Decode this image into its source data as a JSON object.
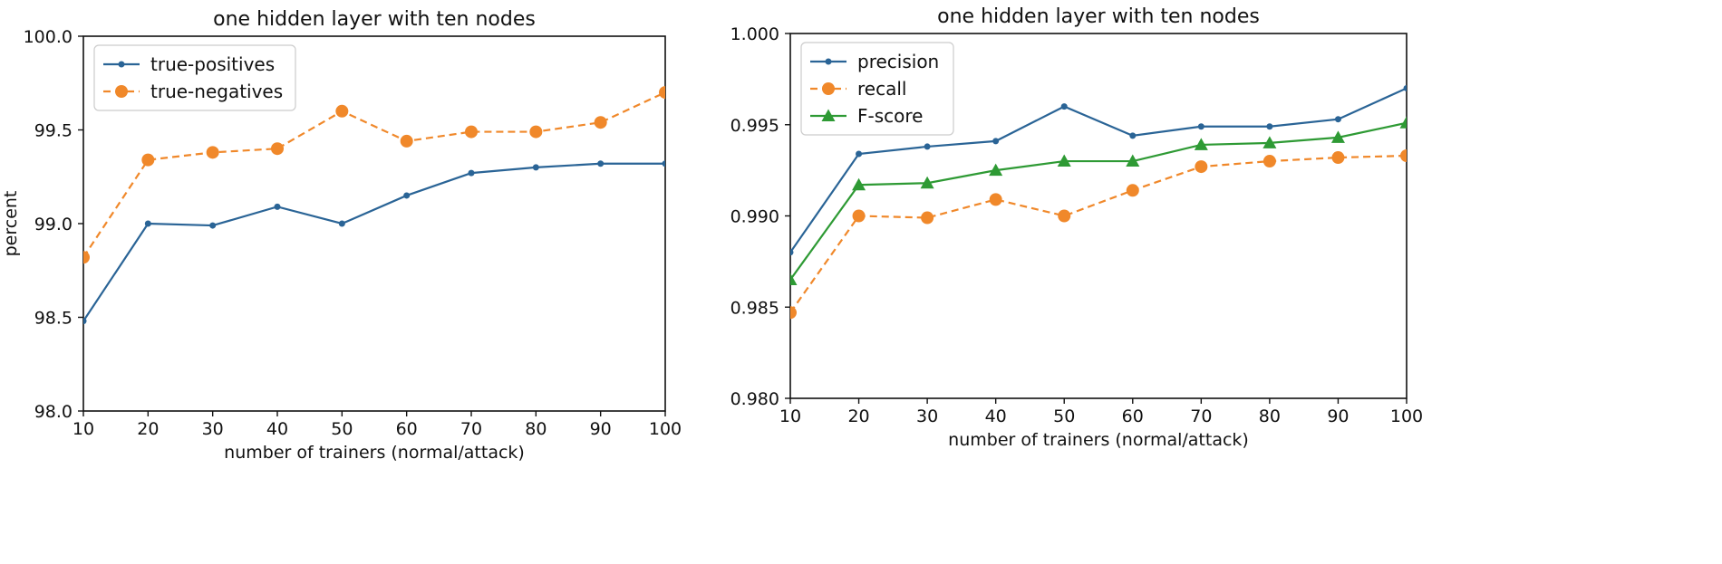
{
  "colors": {
    "blue": "#2a6496",
    "orange": "#f0882a",
    "green": "#2e9a34"
  },
  "chart_data": [
    {
      "type": "line",
      "title": "one hidden layer with ten nodes",
      "xlabel": "number of trainers (normal/attack)",
      "ylabel": "percent",
      "xlim": [
        10,
        100
      ],
      "ylim": [
        98.0,
        100.0
      ],
      "xticks": [
        "10",
        "20",
        "30",
        "40",
        "50",
        "60",
        "70",
        "80",
        "90",
        "100"
      ],
      "yticks": [
        "98.0",
        "98.5",
        "99.0",
        "99.5",
        "100.0"
      ],
      "legend_position": "top-left",
      "series": [
        {
          "name": "true-positives",
          "color": "blue",
          "marker": "dot",
          "dash": "solid",
          "x": [
            10,
            20,
            30,
            40,
            50,
            60,
            70,
            80,
            90,
            100
          ],
          "y": [
            98.48,
            99.0,
            98.99,
            99.09,
            99.0,
            99.15,
            99.27,
            99.3,
            99.32,
            99.32
          ]
        },
        {
          "name": "true-negatives",
          "color": "orange",
          "marker": "circle",
          "dash": "dashed",
          "x": [
            10,
            20,
            30,
            40,
            50,
            60,
            70,
            80,
            90,
            100
          ],
          "y": [
            98.82,
            99.34,
            99.38,
            99.4,
            99.6,
            99.44,
            99.49,
            99.49,
            99.54,
            99.7
          ]
        }
      ]
    },
    {
      "type": "line",
      "title": "one hidden layer with ten nodes",
      "xlabel": "number of trainers (normal/attack)",
      "ylabel": "",
      "xlim": [
        10,
        100
      ],
      "ylim": [
        0.98,
        1.0
      ],
      "xticks": [
        "10",
        "20",
        "30",
        "40",
        "50",
        "60",
        "70",
        "80",
        "90",
        "100"
      ],
      "yticks": [
        "0.980",
        "0.985",
        "0.990",
        "0.995",
        "1.000"
      ],
      "legend_position": "top-left",
      "series": [
        {
          "name": "precision",
          "color": "blue",
          "marker": "dot",
          "dash": "solid",
          "x": [
            10,
            20,
            30,
            40,
            50,
            60,
            70,
            80,
            90,
            100
          ],
          "y": [
            0.988,
            0.9934,
            0.9938,
            0.9941,
            0.996,
            0.9944,
            0.9949,
            0.9949,
            0.9953,
            0.997
          ]
        },
        {
          "name": "recall",
          "color": "orange",
          "marker": "circle",
          "dash": "dashed",
          "x": [
            10,
            20,
            30,
            40,
            50,
            60,
            70,
            80,
            90,
            100
          ],
          "y": [
            0.9847,
            0.99,
            0.9899,
            0.9909,
            0.99,
            0.9914,
            0.9927,
            0.993,
            0.9932,
            0.9933
          ]
        },
        {
          "name": "F-score",
          "color": "green",
          "marker": "triangle",
          "dash": "solid",
          "x": [
            10,
            20,
            30,
            40,
            50,
            60,
            70,
            80,
            90,
            100
          ],
          "y": [
            0.9865,
            0.9917,
            0.9918,
            0.9925,
            0.993,
            0.993,
            0.9939,
            0.994,
            0.9943,
            0.9951
          ]
        }
      ]
    }
  ]
}
